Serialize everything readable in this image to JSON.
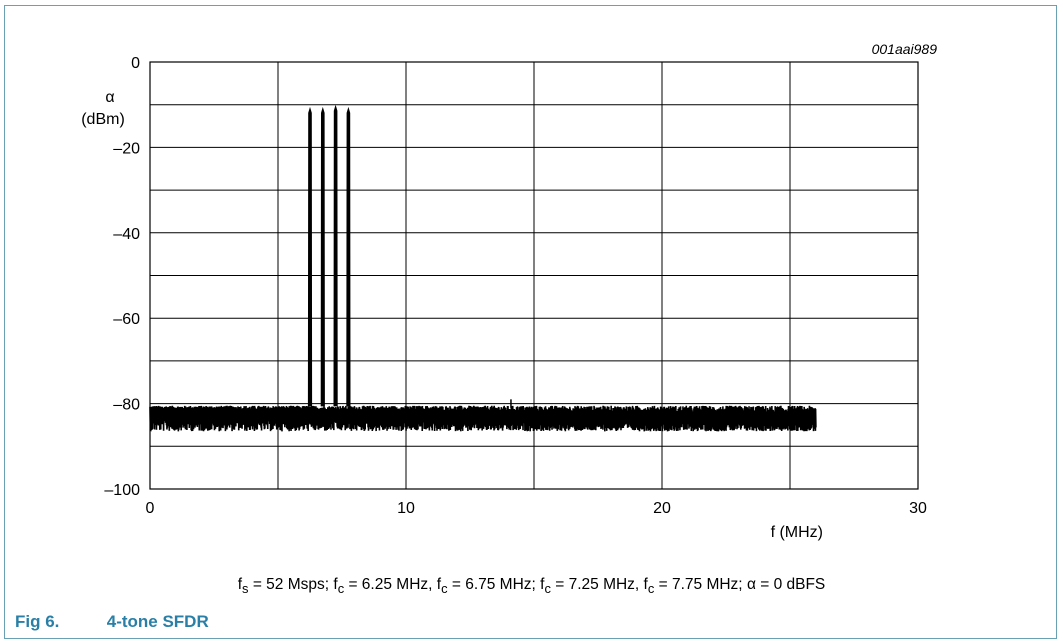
{
  "figure": {
    "number_label": "Fig 6.",
    "title": "4-tone SFDR",
    "code": "001aai989",
    "caption": {
      "fs": "= 52 Msps;",
      "fc1": "= 6.25 MHz,",
      "fc2": "= 6.75 MHz;",
      "fc3": "= 7.25 MHz,",
      "fc4": "= 7.75 MHz;",
      "alpha": "α = 0 dBFS"
    }
  },
  "colors": {
    "trace": "#000000",
    "grid": "#000000",
    "frame": "#6aa0b4",
    "title": "#2a7fa6"
  },
  "chart_data": {
    "type": "line",
    "title": "",
    "xlabel": "f (MHz)",
    "ylabel_line1": "α",
    "ylabel_line2": "(dBm)",
    "xlim": [
      0,
      30
    ],
    "ylim": [
      -100,
      0
    ],
    "x_ticks": [
      0,
      10,
      20,
      30
    ],
    "x_tick_labels": [
      "0",
      "10",
      "20",
      "30"
    ],
    "y_ticks": [
      0,
      -20,
      -40,
      -60,
      -80,
      -100
    ],
    "y_tick_labels": [
      "0",
      "–20",
      "–40",
      "–60",
      "–80",
      "–100"
    ],
    "grid": true,
    "noise_floor": {
      "x_start": 0,
      "x_end": 26,
      "level_start_dbm": -82.5,
      "level_end_dbm": -83.5,
      "band_upper_dbm": -80.5,
      "band_lower_dbm": -86.5
    },
    "tones": [
      {
        "freq_mhz": 6.25,
        "peak_dbm": -11
      },
      {
        "freq_mhz": 6.75,
        "peak_dbm": -11
      },
      {
        "freq_mhz": 7.25,
        "peak_dbm": -10.5
      },
      {
        "freq_mhz": 7.75,
        "peak_dbm": -11
      }
    ],
    "spurs": [
      {
        "freq_mhz": 14.1,
        "level_dbm": -79
      }
    ]
  }
}
